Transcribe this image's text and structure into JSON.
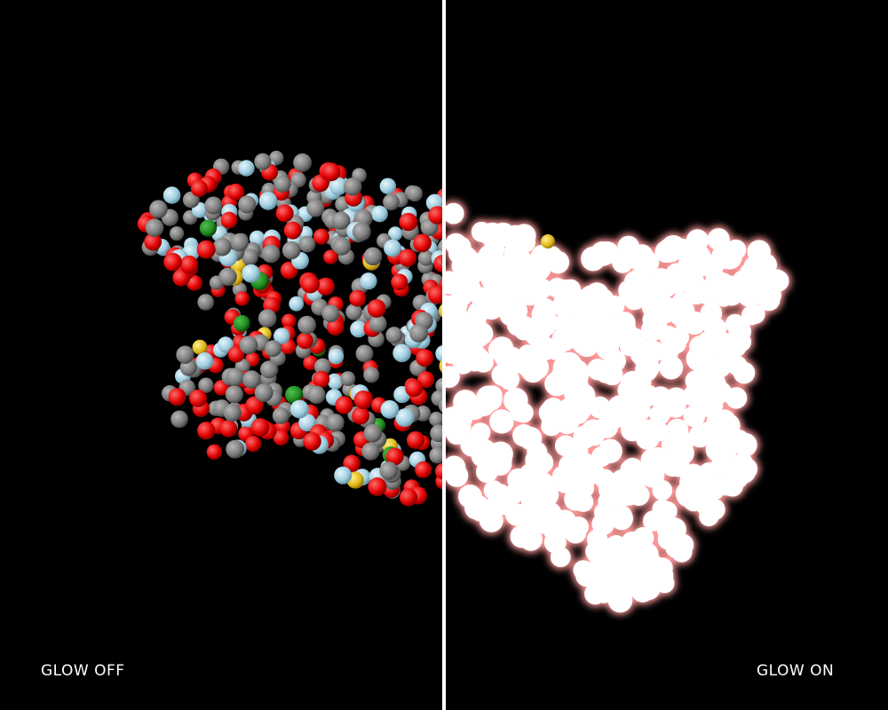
{
  "viewer": {
    "left_panel": {
      "label": "GLOW OFF"
    },
    "right_panel": {
      "label": "GLOW ON"
    }
  },
  "colors": {
    "background": "#000000",
    "divider": "#ffffff",
    "label": "#ffffff",
    "atom_carbon": "#808080",
    "atom_oxygen": "#ff0000",
    "atom_nitrogen": "#a9d6e8",
    "atom_sulfur": "#e8c21f",
    "atom_other": "#1f8a1f",
    "glow_core": "#ffffff",
    "glow_halo": "#ff9a9a"
  }
}
